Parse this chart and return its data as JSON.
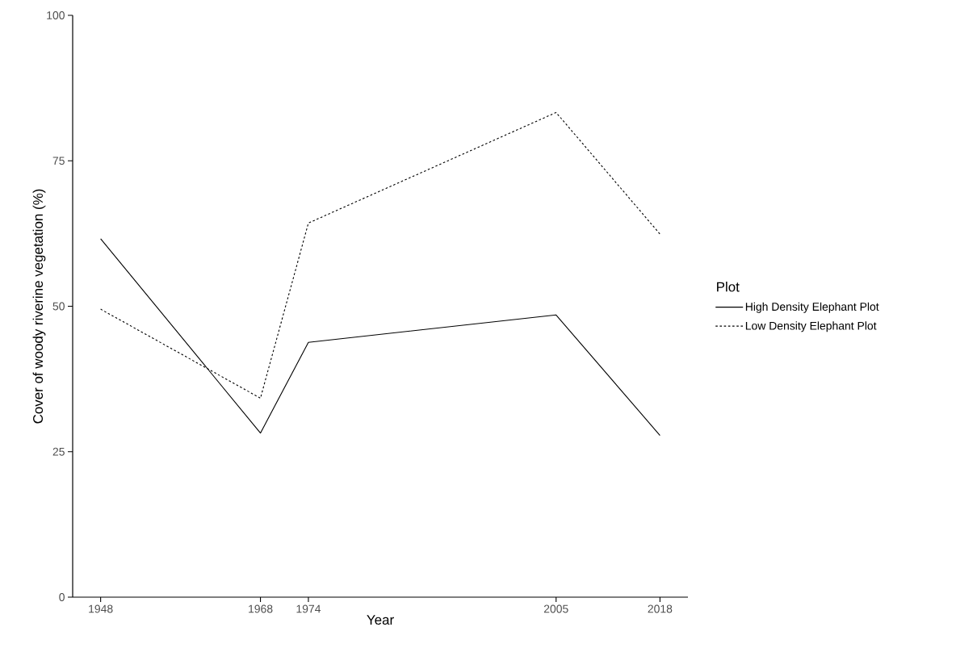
{
  "chart_data": {
    "type": "line",
    "xlabel": "Year",
    "ylabel": "Cover of woody riverine vegetation (%)",
    "legend_title": "Plot",
    "legend": "right",
    "x": [
      1948,
      1968,
      1974,
      2005,
      2018
    ],
    "series": [
      {
        "name": "High Density Elephant Plot",
        "color": "#000000",
        "line_style": "solid",
        "values": [
          61.6,
          28.2,
          43.8,
          48.5,
          27.8
        ]
      },
      {
        "name": "Low Density Elephant Plot",
        "color": "#000000",
        "line_style": "dotted",
        "values": [
          49.5,
          34.2,
          64.3,
          83.3,
          62.4
        ]
      }
    ],
    "xlim": [
      1944.5,
      2021.5
    ],
    "ylim": [
      0,
      100
    ],
    "xticks": [
      1948,
      1968,
      1974,
      2005,
      2018
    ],
    "yticks": [
      0,
      25,
      50,
      75,
      100
    ]
  }
}
